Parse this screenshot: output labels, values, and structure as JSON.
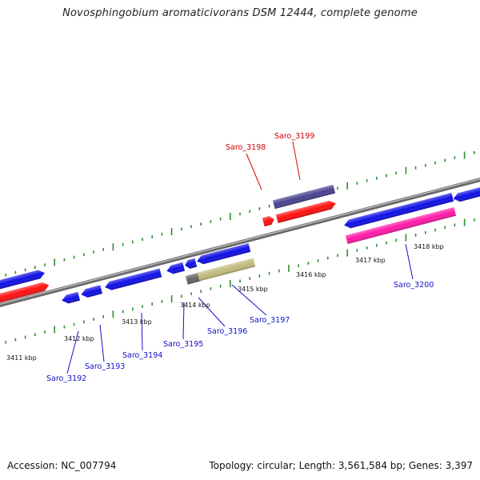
{
  "title": "Novosphingobium aromaticivorans DSM 12444, complete genome",
  "footer": {
    "accession": "Accession: NC_007794",
    "summary": "Topology: circular; Length: 3,561,584 bp; Genes: 3,397"
  },
  "colors": {
    "backbone": "#8c8c8c",
    "tick": "#2e8b2e",
    "forward_gene": "#1010e6",
    "reverse_gene": "#ff1010",
    "label_blue": "#1010c8",
    "label_red": "#d00000",
    "dark_purple": "#4a4290",
    "magenta": "#ff1aa8",
    "khaki": "#c2bb7c",
    "grey": "#666666"
  },
  "scale_labels": [
    "3411 kbp",
    "3412 kbp",
    "3413 kbp",
    "3414 kbp",
    "3415 kbp",
    "3416 kbp",
    "3417 kbp",
    "3418 kbp"
  ],
  "gene_labels": [
    {
      "name": "Saro_3192",
      "color": "label_blue"
    },
    {
      "name": "Saro_3193",
      "color": "label_blue"
    },
    {
      "name": "Saro_3194",
      "color": "label_blue"
    },
    {
      "name": "Saro_3195",
      "color": "label_blue"
    },
    {
      "name": "Saro_3196",
      "color": "label_blue"
    },
    {
      "name": "Saro_3197",
      "color": "label_blue"
    },
    {
      "name": "Saro_3198",
      "color": "label_red"
    },
    {
      "name": "Saro_3199",
      "color": "label_red"
    },
    {
      "name": "Saro_3200",
      "color": "label_blue"
    }
  ]
}
